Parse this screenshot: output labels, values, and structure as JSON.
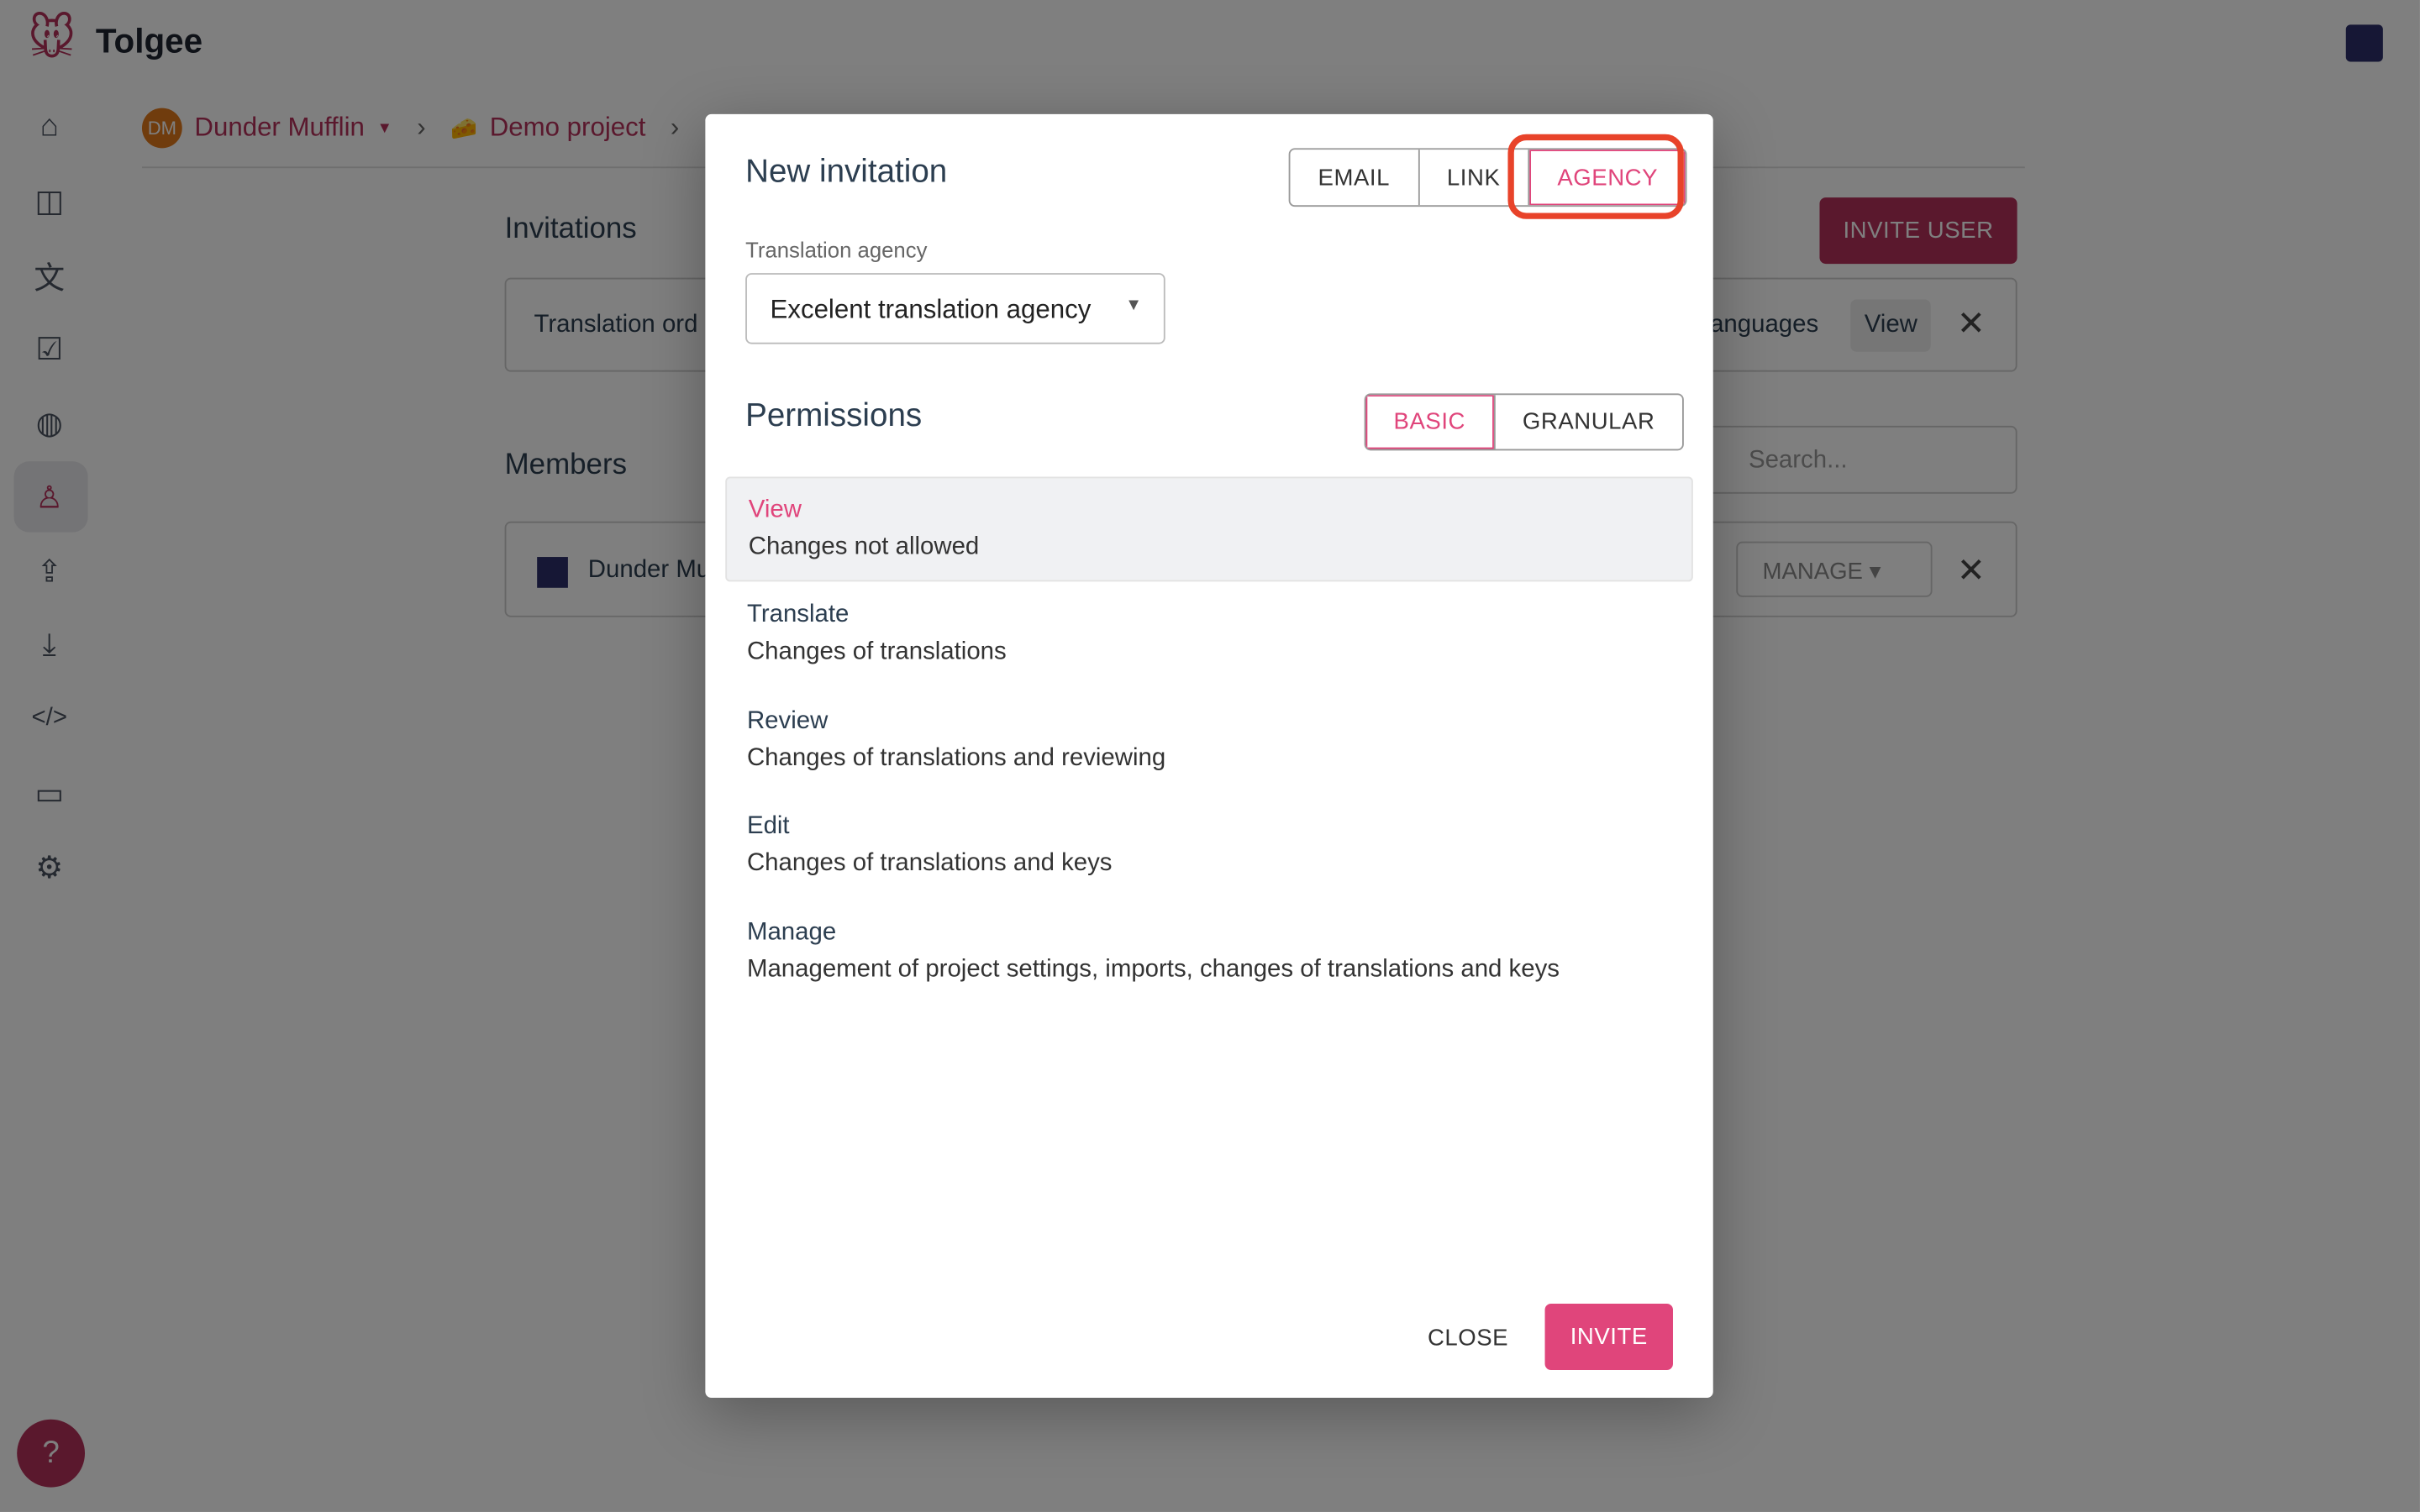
{
  "app": {
    "name": "Tolgee"
  },
  "breadcrumb": {
    "org_initials": "DM",
    "org": "Dunder Mufflin",
    "project": "Demo project"
  },
  "sidebar": {
    "items": [
      "home",
      "projects-dashboard",
      "translations",
      "tasks",
      "languages",
      "members",
      "import",
      "export",
      "developer",
      "integrations",
      "settings"
    ],
    "active": "members",
    "help": "help-icon"
  },
  "page": {
    "invitations_title": "Invitations",
    "invite_user": "INVITE USER",
    "invitation_row": {
      "text": "Translation ord",
      "languages": "anguages",
      "role": "View"
    },
    "members_title": "Members",
    "search_placeholder": "Search...",
    "member_row": {
      "name": "Dunder Mu",
      "role": "MANAGE"
    }
  },
  "modal": {
    "title": "New invitation",
    "tabs": [
      "EMAIL",
      "LINK",
      "AGENCY"
    ],
    "active_tab": "AGENCY",
    "agency_label": "Translation agency",
    "agency_value": "Excelent translation agency",
    "permissions_title": "Permissions",
    "perm_modes": [
      "BASIC",
      "GRANULAR"
    ],
    "active_mode": "BASIC",
    "permissions": [
      {
        "title": "View",
        "desc": "Changes not allowed"
      },
      {
        "title": "Translate",
        "desc": "Changes of translations"
      },
      {
        "title": "Review",
        "desc": "Changes of translations and reviewing"
      },
      {
        "title": "Edit",
        "desc": "Changes of translations and keys"
      },
      {
        "title": "Manage",
        "desc": "Management of project settings, imports, changes of translations and keys"
      }
    ],
    "selected_permission": "View",
    "close": "CLOSE",
    "invite": "INVITE"
  },
  "colors": {
    "primary": "#b5305a",
    "accent": "#e0457b",
    "highlight": "#e8432a"
  }
}
